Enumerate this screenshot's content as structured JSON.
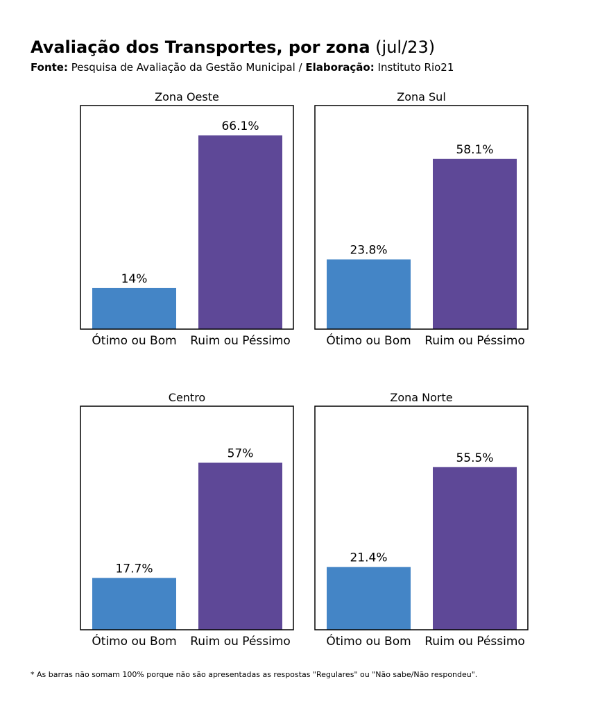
{
  "header": {
    "title_bold": "Avaliação dos Transportes, por zona",
    "title_period": "(jul/23)",
    "source_label": "Fonte:",
    "source_text": "Pesquisa de Avaliação da Gestão Municipal /",
    "elaboration_label": "Elaboração:",
    "elaboration_text": "Instituto Rio21"
  },
  "footnote": "* As barras não somam 100% porque não são apresentadas as respostas \"Regulares\" ou \"Não sabe/Não respondeu\".",
  "colors": {
    "otimo_bom": "#4485C6",
    "ruim_pessimo": "#5E4897",
    "frame": "#000000"
  },
  "chart_data": [
    {
      "type": "bar",
      "title": "Zona Oeste",
      "categories": [
        "Ótimo ou Bom",
        "Ruim ou Péssimo"
      ],
      "values": [
        14,
        66.1
      ],
      "labels": [
        "14%",
        "66.1%"
      ],
      "ylim": [
        0,
        76.3
      ]
    },
    {
      "type": "bar",
      "title": "Zona Sul",
      "categories": [
        "Ótimo ou Bom",
        "Ruim ou Péssimo"
      ],
      "values": [
        23.8,
        58.1
      ],
      "labels": [
        "23.8%",
        "58.1%"
      ],
      "ylim": [
        0,
        76.3
      ]
    },
    {
      "type": "bar",
      "title": "Centro",
      "categories": [
        "Ótimo ou Bom",
        "Ruim ou Péssimo"
      ],
      "values": [
        17.7,
        57
      ],
      "labels": [
        "17.7%",
        "57%"
      ],
      "ylim": [
        0,
        76.3
      ]
    },
    {
      "type": "bar",
      "title": "Zona Norte",
      "categories": [
        "Ótimo ou Bom",
        "Ruim ou Péssimo"
      ],
      "values": [
        21.4,
        55.5
      ],
      "labels": [
        "21.4%",
        "55.5%"
      ],
      "ylim": [
        0,
        76.3
      ]
    }
  ]
}
